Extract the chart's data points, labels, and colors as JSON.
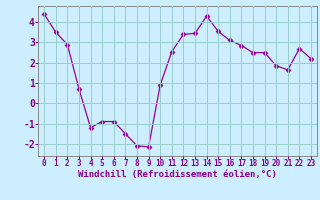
{
  "x": [
    0,
    1,
    2,
    3,
    4,
    5,
    6,
    7,
    8,
    9,
    10,
    11,
    12,
    13,
    14,
    15,
    16,
    17,
    18,
    19,
    20,
    21,
    22,
    23
  ],
  "y": [
    4.4,
    3.5,
    2.9,
    0.7,
    -1.2,
    -0.9,
    -0.9,
    -1.5,
    -2.1,
    -2.15,
    0.9,
    2.55,
    3.4,
    3.45,
    4.3,
    3.55,
    3.1,
    2.85,
    2.5,
    2.5,
    1.85,
    1.65,
    2.7,
    2.2
  ],
  "line_color": "#990099",
  "marker": "D",
  "marker_size": 2.5,
  "bg_color": "#cceeff",
  "grid_color": "#99cccc",
  "xlabel": "Windchill (Refroidissement éolien,°C)",
  "xlim": [
    -0.5,
    23.5
  ],
  "ylim": [
    -2.6,
    4.8
  ],
  "yticks": [
    -2,
    -1,
    0,
    1,
    2,
    3,
    4
  ],
  "xticks": [
    0,
    1,
    2,
    3,
    4,
    5,
    6,
    7,
    8,
    9,
    10,
    11,
    12,
    13,
    14,
    15,
    16,
    17,
    18,
    19,
    20,
    21,
    22,
    23
  ],
  "tick_color": "#880088",
  "label_color": "#880088",
  "xlabel_fontsize": 6.5,
  "ytick_fontsize": 7,
  "xtick_fontsize": 5.5
}
